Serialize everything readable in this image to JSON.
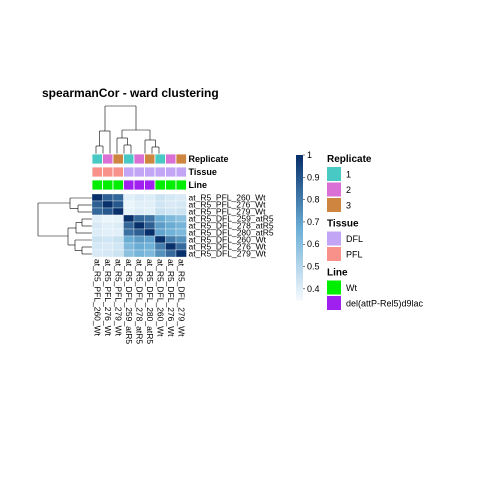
{
  "chart_data": {
    "type": "heatmap",
    "title": "spearmanCor - ward clustering",
    "rows": [
      "at_R5_PFL_260_Wt",
      "at_R5_PFL_276_Wt",
      "at_R5_PFL_279_Wt",
      "at_R5_DFL_259_atR5",
      "at_R5_DFL_278_atR5",
      "at_R5_DFL_280_atR5",
      "at_R5_DFL_260_Wt",
      "at_R5_DFL_276_Wt",
      "at_R5_DFL_279_Wt"
    ],
    "columns": [
      "at_R5_PFL_260_Wt",
      "at_R5_PFL_276_Wt",
      "at_R5_PFL_279_Wt",
      "at_R5_DFL_259_atR5",
      "at_R5_DFL_278_atR5",
      "at_R5_DFL_280_atR5",
      "at_R5_DFL_260_Wt",
      "at_R5_DFL_276_Wt",
      "at_R5_DFL_279_Wt"
    ],
    "matrix": [
      [
        1.0,
        0.88,
        0.86,
        0.4,
        0.42,
        0.41,
        0.45,
        0.43,
        0.42
      ],
      [
        0.88,
        1.0,
        0.9,
        0.38,
        0.4,
        0.4,
        0.44,
        0.42,
        0.43
      ],
      [
        0.86,
        0.9,
        1.0,
        0.39,
        0.41,
        0.4,
        0.46,
        0.44,
        0.45
      ],
      [
        0.4,
        0.38,
        0.39,
        1.0,
        0.86,
        0.83,
        0.68,
        0.63,
        0.6
      ],
      [
        0.42,
        0.4,
        0.41,
        0.86,
        1.0,
        0.88,
        0.72,
        0.68,
        0.65
      ],
      [
        0.41,
        0.4,
        0.4,
        0.83,
        0.88,
        1.0,
        0.7,
        0.66,
        0.63
      ],
      [
        0.45,
        0.44,
        0.46,
        0.68,
        0.72,
        0.7,
        1.0,
        0.8,
        0.75
      ],
      [
        0.43,
        0.42,
        0.44,
        0.63,
        0.68,
        0.66,
        0.8,
        1.0,
        0.85
      ],
      [
        0.42,
        0.43,
        0.45,
        0.6,
        0.65,
        0.63,
        0.75,
        0.85,
        1.0
      ]
    ],
    "color_scale": {
      "min": 0.35,
      "max": 1,
      "ticks": [
        "1",
        "0.9",
        "0.8",
        "0.7",
        "0.6",
        "0.5",
        "0.4"
      ],
      "tick_values": [
        1,
        0.9,
        0.8,
        0.7,
        0.6,
        0.5,
        0.4
      ],
      "low_color": "#f7fbff",
      "mid_color": "#6baed6",
      "high_color": "#08306b"
    },
    "annotations": [
      {
        "name": "Replicate",
        "values": [
          "1",
          "2",
          "3",
          "1",
          "2",
          "3",
          "1",
          "2",
          "3"
        ],
        "legend": [
          {
            "label": "1",
            "color": "#48c9c4"
          },
          {
            "label": "2",
            "color": "#da70d6"
          },
          {
            "label": "3",
            "color": "#cd853f"
          }
        ]
      },
      {
        "name": "Tissue",
        "values": [
          "PFL",
          "PFL",
          "PFL",
          "DFL",
          "DFL",
          "DFL",
          "DFL",
          "DFL",
          "DFL"
        ],
        "legend": [
          {
            "label": "DFL",
            "color": "#c2a6f5"
          },
          {
            "label": "PFL",
            "color": "#f7918a"
          }
        ]
      },
      {
        "name": "Line",
        "values": [
          "Wt",
          "Wt",
          "Wt",
          "del(attP-Rel5)d9lac",
          "del(attP-Rel5)d9lac",
          "del(attP-Rel5)d9lac",
          "Wt",
          "Wt",
          "Wt"
        ],
        "legend": [
          {
            "label": "Wt",
            "color": "#00ee00"
          },
          {
            "label": "del(attP-Rel5)d9lac",
            "color": "#a020f0"
          }
        ]
      }
    ]
  }
}
